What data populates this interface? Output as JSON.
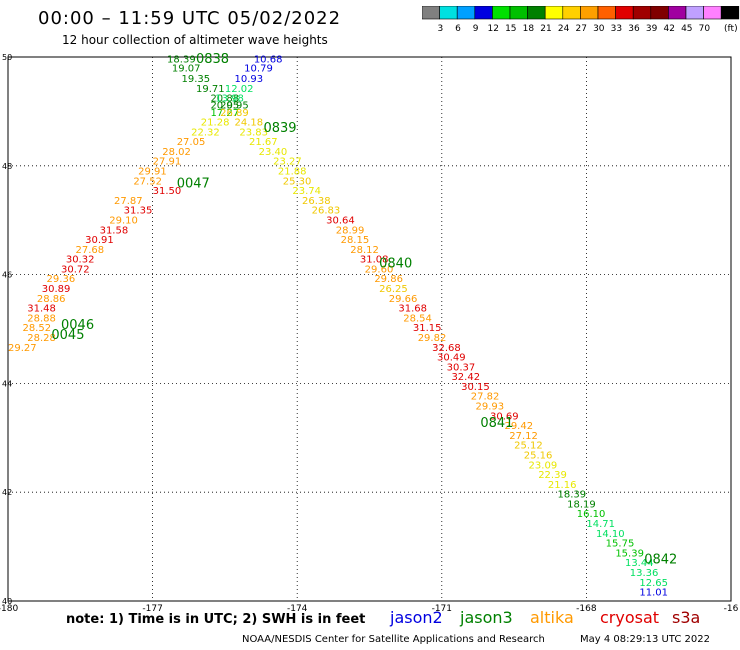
{
  "title": "00:00 – 11:59 UTC 05/02/2022",
  "subtitle": "12 hour collection of altimeter wave heights",
  "colorbar": {
    "labels": [
      "3",
      "6",
      "9",
      "12",
      "15",
      "18",
      "21",
      "24",
      "27",
      "30",
      "33",
      "36",
      "39",
      "42",
      "45",
      "70"
    ],
    "unit": "(ft)",
    "colors": [
      "#808080",
      "#00e0e0",
      "#00a0ff",
      "#0000e0",
      "#00e000",
      "#00c000",
      "#008000",
      "#ffff00",
      "#ffd000",
      "#ffa000",
      "#ff6000",
      "#e00000",
      "#a00000",
      "#800000",
      "#a000a0",
      "#c0a0ff",
      "#ff80ff",
      "#000000"
    ]
  },
  "axes": {
    "lon_ticks": [
      "-180",
      "-177",
      "-174",
      "-171",
      "-168",
      "-16"
    ],
    "lat_ticks": [
      "50",
      "48",
      "46",
      "44",
      "42",
      "40"
    ],
    "lon_range": [
      -180,
      -165
    ],
    "lat_range": [
      40,
      50
    ]
  },
  "note": "note: 1) Time is in UTC; 2) SWH is in feet",
  "satellites": [
    {
      "name": "jason2",
      "color": "#0000e0"
    },
    {
      "name": "jason3",
      "color": "#008000"
    },
    {
      "name": "altika",
      "color": "#ff9900"
    },
    {
      "name": "cryosat",
      "color": "#e00000"
    },
    {
      "name": "s3a",
      "color": "#a00000"
    }
  ],
  "credit": "NOAA/NESDIS Center for Satellite Applications and Research",
  "timestamp": "May  4 08:29:13 UTC 2022",
  "time_labels": [
    {
      "text": "0838",
      "lon": -176.1,
      "lat": 49.89
    },
    {
      "text": "0839",
      "lon": -174.7,
      "lat": 48.62
    },
    {
      "text": "0047",
      "lon": -176.5,
      "lat": 47.6
    },
    {
      "text": "0840",
      "lon": -172.3,
      "lat": 46.13
    },
    {
      "text": "0046",
      "lon": -178.9,
      "lat": 45.0
    },
    {
      "text": "0045",
      "lon": -179.1,
      "lat": 44.82
    },
    {
      "text": "0841",
      "lon": -170.2,
      "lat": 43.2
    },
    {
      "text": "0842",
      "lon": -166.8,
      "lat": 40.69
    }
  ],
  "wave_heights": [
    [
      "18.39",
      -176.7,
      49.9
    ],
    [
      "10.68",
      -174.9,
      49.9
    ],
    [
      "19.07",
      -176.6,
      49.73
    ],
    [
      "10.79",
      -175.1,
      49.73
    ],
    [
      "19.35",
      -176.4,
      49.54
    ],
    [
      "10.93",
      -175.3,
      49.54
    ],
    [
      "19.71",
      -176.1,
      49.36
    ],
    [
      "12.02",
      -175.5,
      49.36
    ],
    [
      "20.88",
      -175.8,
      49.18
    ],
    [
      "13.98",
      -175.7,
      49.18
    ],
    [
      "20.95",
      -175.8,
      49.05
    ],
    [
      "20.95",
      -175.6,
      49.05
    ],
    [
      "17.27",
      -175.8,
      48.92
    ],
    [
      "26.89",
      -175.6,
      48.92
    ],
    [
      "21.28",
      -176.0,
      48.74
    ],
    [
      "24.18",
      -175.3,
      48.74
    ],
    [
      "22.32",
      -176.2,
      48.56
    ],
    [
      "23.83",
      -175.2,
      48.56
    ],
    [
      "27.05",
      -176.5,
      48.38
    ],
    [
      "21.67",
      -175.0,
      48.38
    ],
    [
      "28.02",
      -176.8,
      48.2
    ],
    [
      "23.40",
      -174.8,
      48.2
    ],
    [
      "27.91",
      -177.0,
      48.02
    ],
    [
      "23.27",
      -174.5,
      48.02
    ],
    [
      "29.91",
      -177.3,
      47.84
    ],
    [
      "21.88",
      -174.4,
      47.84
    ],
    [
      "27.52",
      -177.4,
      47.66
    ],
    [
      "25.30",
      -174.3,
      47.66
    ],
    [
      "31.50",
      -177.0,
      47.48
    ],
    [
      "23.74",
      -174.1,
      47.48
    ],
    [
      "27.87",
      -177.8,
      47.3
    ],
    [
      "26.38",
      -173.9,
      47.3
    ],
    [
      "31.35",
      -177.6,
      47.12
    ],
    [
      "26.83",
      -173.7,
      47.12
    ],
    [
      "29.10",
      -177.9,
      46.94
    ],
    [
      "30.64",
      -173.4,
      46.94
    ],
    [
      "31.58",
      -178.1,
      46.76
    ],
    [
      "28.99",
      -173.2,
      46.76
    ],
    [
      "30.91",
      -178.4,
      46.58
    ],
    [
      "28.15",
      -173.1,
      46.58
    ],
    [
      "27.68",
      -178.6,
      46.4
    ],
    [
      "28.12",
      -172.9,
      46.4
    ],
    [
      "30.32",
      -178.8,
      46.22
    ],
    [
      "31.08",
      -172.7,
      46.22
    ],
    [
      "30.72",
      -178.9,
      46.04
    ],
    [
      "29.60",
      -172.6,
      46.04
    ],
    [
      "29.36",
      -179.2,
      45.86
    ],
    [
      "29.86",
      -172.4,
      45.86
    ],
    [
      "30.89",
      -179.3,
      45.68
    ],
    [
      "26.25",
      -172.3,
      45.68
    ],
    [
      "28.86",
      -179.4,
      45.5
    ],
    [
      "29.66",
      -172.1,
      45.5
    ],
    [
      "31.48",
      -179.6,
      45.32
    ],
    [
      "31.68",
      -171.9,
      45.32
    ],
    [
      "28.88",
      -179.6,
      45.14
    ],
    [
      "28.54",
      -171.8,
      45.14
    ],
    [
      "28.52",
      -179.7,
      44.96
    ],
    [
      "31.15",
      -171.6,
      44.96
    ],
    [
      "28.28",
      -179.6,
      44.78
    ],
    [
      "29.82",
      -171.5,
      44.78
    ],
    [
      "29.27",
      -180.0,
      44.6
    ],
    [
      "32.68",
      -171.2,
      44.6
    ],
    [
      "30.49",
      -171.1,
      44.42
    ],
    [
      "30.37",
      -170.9,
      44.24
    ],
    [
      "32.42",
      -170.8,
      44.06
    ],
    [
      "30.15",
      -170.6,
      43.88
    ],
    [
      "27.82",
      -170.4,
      43.7
    ],
    [
      "29.93",
      -170.3,
      43.52
    ],
    [
      "30.69",
      -170.0,
      43.34
    ],
    [
      "29.42",
      -169.7,
      43.16
    ],
    [
      "27.12",
      -169.6,
      42.98
    ],
    [
      "25.12",
      -169.5,
      42.8
    ],
    [
      "25.16",
      -169.3,
      42.62
    ],
    [
      "23.09",
      -169.2,
      42.44
    ],
    [
      "22.39",
      -169.0,
      42.26
    ],
    [
      "21.16",
      -168.8,
      42.08
    ],
    [
      "18.39",
      -168.6,
      41.9
    ],
    [
      "18.19",
      -168.4,
      41.72
    ],
    [
      "16.10",
      -168.2,
      41.54
    ],
    [
      "14.71",
      -168.0,
      41.36
    ],
    [
      "14.10",
      -167.8,
      41.18
    ],
    [
      "15.75",
      -167.6,
      41.0
    ],
    [
      "15.39",
      -167.4,
      40.82
    ],
    [
      "13.44",
      -167.2,
      40.64
    ],
    [
      "13.36",
      -167.1,
      40.46
    ],
    [
      "12.65",
      -166.9,
      40.28
    ],
    [
      "11.01",
      -166.9,
      40.1
    ]
  ]
}
